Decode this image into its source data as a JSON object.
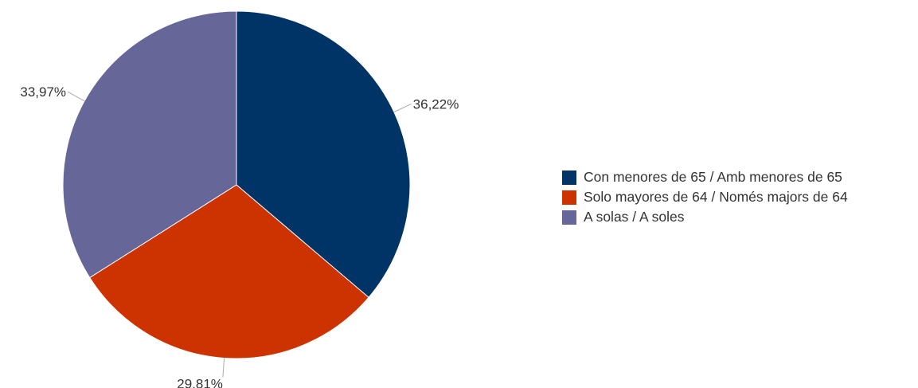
{
  "chart_data": {
    "type": "pie",
    "slices": [
      {
        "label": "Con menores de 65 / Amb menores de 65",
        "value": 36.22,
        "value_label": "36,22%",
        "color": "#003366"
      },
      {
        "label": "Solo mayores de 64 / Només majors de 64",
        "value": 29.81,
        "value_label": "29,81%",
        "color": "#CC3300"
      },
      {
        "label": "A solas / A soles",
        "value": 33.97,
        "value_label": "33,97%",
        "color": "#666699"
      }
    ],
    "legend_position": "right",
    "start_angle": "12 o'clock",
    "direction": "clockwise"
  }
}
